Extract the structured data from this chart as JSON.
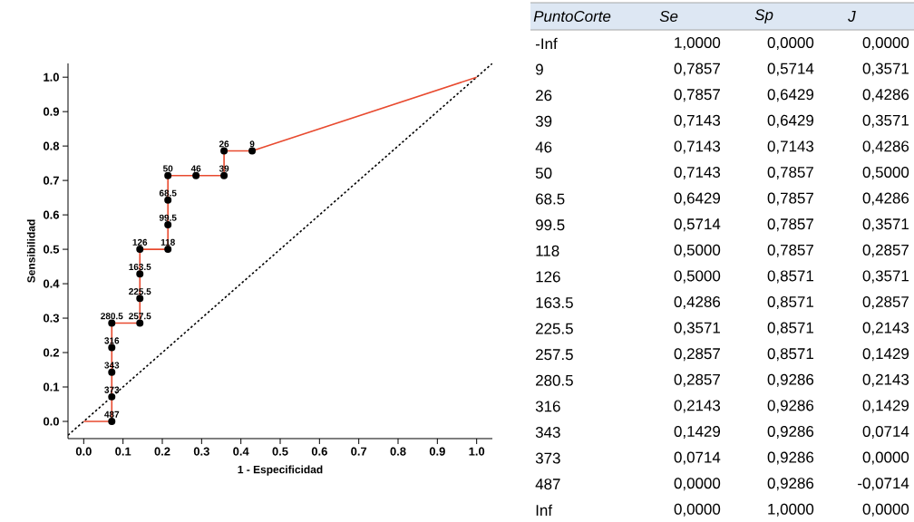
{
  "chart_data": [
    {
      "type": "line",
      "xlabel": "1 - Especificidad",
      "ylabel": "Sensibilidad",
      "xlim": [
        -0.04,
        1.04
      ],
      "ylim": [
        -0.05,
        1.04
      ],
      "xticks": [
        {
          "value": 0,
          "label": "0.0"
        },
        {
          "value": 0.1,
          "label": "0.1"
        },
        {
          "value": 0.2,
          "label": "0.2"
        },
        {
          "value": 0.3,
          "label": "0.3"
        },
        {
          "value": 0.4,
          "label": "0.4"
        },
        {
          "value": 0.5,
          "label": "0.5"
        },
        {
          "value": 0.6,
          "label": "0.6"
        },
        {
          "value": 0.7,
          "label": "0.7"
        },
        {
          "value": 0.8,
          "label": "0.8"
        },
        {
          "value": 0.9,
          "label": "0.9"
        },
        {
          "value": 1,
          "label": "1.0"
        }
      ],
      "yticks": [
        {
          "value": 0,
          "label": "0.0"
        },
        {
          "value": 0.1,
          "label": "0.1"
        },
        {
          "value": 0.2,
          "label": "0.2"
        },
        {
          "value": 0.3,
          "label": "0.3"
        },
        {
          "value": 0.4,
          "label": "0.4"
        },
        {
          "value": 0.5,
          "label": "0.5"
        },
        {
          "value": 0.6,
          "label": "0.6"
        },
        {
          "value": 0.7,
          "label": "0.7"
        },
        {
          "value": 0.8,
          "label": "0.8"
        },
        {
          "value": 0.9,
          "label": "0.9"
        },
        {
          "value": 1,
          "label": "1.0"
        }
      ],
      "grid": false,
      "series": [
        {
          "type": "line",
          "color": "#000000",
          "line_style": "dotted",
          "marker": "none",
          "x": [
            -0.04,
            1.04
          ],
          "values": [
            -0.04,
            1.04
          ]
        },
        {
          "type": "line",
          "color": "#e84a2f",
          "line_style": "solid",
          "marker": "none",
          "x": [
            1.0,
            0.4286,
            0.3571,
            0.3571,
            0.2857,
            0.2143,
            0.2143,
            0.2143,
            0.2143,
            0.1429,
            0.1429,
            0.1429,
            0.1429,
            0.0714,
            0.0714,
            0.0714,
            0.0714,
            0.0714,
            0.0
          ],
          "values": [
            1.0,
            0.7857,
            0.7857,
            0.7143,
            0.7143,
            0.7143,
            0.6429,
            0.5714,
            0.5,
            0.5,
            0.4286,
            0.3571,
            0.2857,
            0.2857,
            0.2143,
            0.1429,
            0.0714,
            0.0,
            0.0
          ]
        },
        {
          "type": "scatter",
          "color": "#000000",
          "marker": "circle",
          "x": [
            0.4286,
            0.3571,
            0.3571,
            0.2857,
            0.2143,
            0.2143,
            0.2143,
            0.2143,
            0.1429,
            0.1429,
            0.1429,
            0.1429,
            0.0714,
            0.0714,
            0.0714,
            0.0714,
            0.0714
          ],
          "values": [
            0.7857,
            0.7857,
            0.7143,
            0.7143,
            0.7143,
            0.6429,
            0.5714,
            0.5,
            0.5,
            0.4286,
            0.3571,
            0.2857,
            0.2857,
            0.2143,
            0.1429,
            0.0714,
            0.0
          ]
        }
      ],
      "annotations": [
        {
          "text": "9",
          "x": 0.4286,
          "y": 0.7857
        },
        {
          "text": "26",
          "x": 0.3571,
          "y": 0.7857
        },
        {
          "text": "39",
          "x": 0.3571,
          "y": 0.7143
        },
        {
          "text": "46",
          "x": 0.2857,
          "y": 0.7143
        },
        {
          "text": "50",
          "x": 0.2143,
          "y": 0.7143
        },
        {
          "text": "68.5",
          "x": 0.2143,
          "y": 0.6429
        },
        {
          "text": "99.5",
          "x": 0.2143,
          "y": 0.5714
        },
        {
          "text": "118",
          "x": 0.2143,
          "y": 0.5
        },
        {
          "text": "126",
          "x": 0.1429,
          "y": 0.5
        },
        {
          "text": "163.5",
          "x": 0.1429,
          "y": 0.4286
        },
        {
          "text": "225.5",
          "x": 0.1429,
          "y": 0.3571
        },
        {
          "text": "257.5",
          "x": 0.1429,
          "y": 0.2857
        },
        {
          "text": "280.5",
          "x": 0.0714,
          "y": 0.2857
        },
        {
          "text": "316",
          "x": 0.0714,
          "y": 0.2143
        },
        {
          "text": "343",
          "x": 0.0714,
          "y": 0.1429
        },
        {
          "text": "373",
          "x": 0.0714,
          "y": 0.0714
        },
        {
          "text": "487",
          "x": 0.0714,
          "y": 0.0
        }
      ]
    },
    {
      "type": "other",
      "ylabel": "PuntoCorte",
      "categories": [
        "Se",
        "Sp",
        "J"
      ],
      "y_categories": [
        "-Inf",
        "9",
        "26",
        "39",
        "46",
        "50",
        "68.5",
        "99.5",
        "118",
        "126",
        "163.5",
        "225.5",
        "257.5",
        "280.5",
        "316",
        "343",
        "373",
        "487",
        "Inf"
      ],
      "cell_labels": [
        [
          "1,0000",
          "0,0000",
          "0,0000"
        ],
        [
          "0,7857",
          "0,5714",
          "0,3571"
        ],
        [
          "0,7857",
          "0,6429",
          "0,4286"
        ],
        [
          "0,7143",
          "0,6429",
          "0,3571"
        ],
        [
          "0,7143",
          "0,7143",
          "0,4286"
        ],
        [
          "0,7143",
          "0,7857",
          "0,5000"
        ],
        [
          "0,6429",
          "0,7857",
          "0,4286"
        ],
        [
          "0,5714",
          "0,7857",
          "0,3571"
        ],
        [
          "0,5000",
          "0,7857",
          "0,2857"
        ],
        [
          "0,5000",
          "0,8571",
          "0,3571"
        ],
        [
          "0,4286",
          "0,8571",
          "0,2857"
        ],
        [
          "0,3571",
          "0,8571",
          "0,2143"
        ],
        [
          "0,2857",
          "0,8571",
          "0,1429"
        ],
        [
          "0,2857",
          "0,9286",
          "0,2143"
        ],
        [
          "0,2143",
          "0,9286",
          "0,1429"
        ],
        [
          "0,1429",
          "0,9286",
          "0,0714"
        ],
        [
          "0,0714",
          "0,9286",
          "0,0000"
        ],
        [
          "0,0000",
          "0,9286",
          "-0,0714"
        ],
        [
          "0,0000",
          "1,0000",
          "0,0000"
        ]
      ]
    }
  ]
}
